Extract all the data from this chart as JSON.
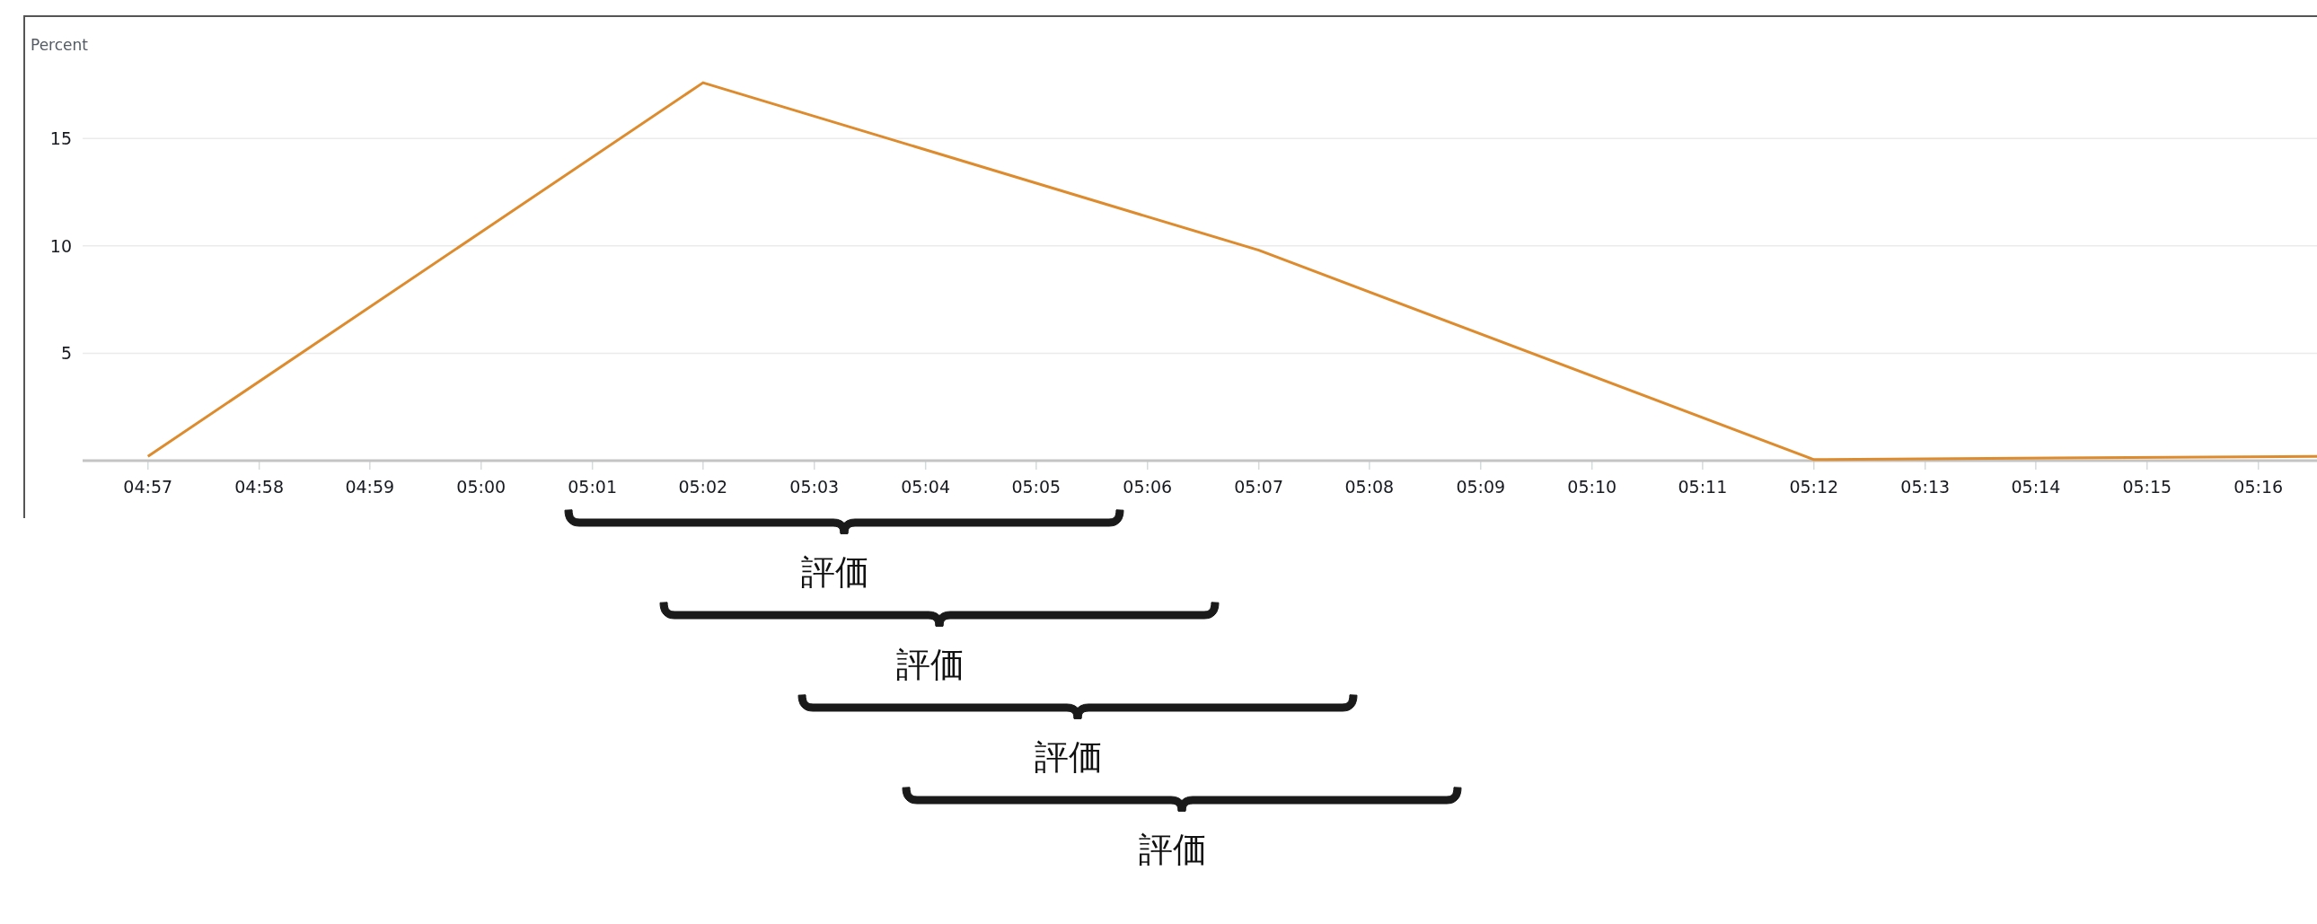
{
  "chart_data": {
    "type": "line",
    "ylabel": "Percent",
    "x": [
      4.95,
      5.0333,
      5.1167,
      5.2,
      5.2755
    ],
    "series": [
      {
        "color": "#dd8b2d",
        "values": [
          0.2,
          17.6,
          9.8,
          0.05,
          0.2
        ]
      }
    ],
    "xlim": [
      4.9402,
      5.2755
    ],
    "xticks": [
      {
        "value": 4.95,
        "label": "04:57"
      },
      {
        "value": 4.9667,
        "label": "04:58"
      },
      {
        "value": 4.9833,
        "label": "04:59"
      },
      {
        "value": 5.0,
        "label": "05:00"
      },
      {
        "value": 5.0167,
        "label": "05:01"
      },
      {
        "value": 5.0333,
        "label": "05:02"
      },
      {
        "value": 5.05,
        "label": "05:03"
      },
      {
        "value": 5.0667,
        "label": "05:04"
      },
      {
        "value": 5.0833,
        "label": "05:05"
      },
      {
        "value": 5.1,
        "label": "05:06"
      },
      {
        "value": 5.1167,
        "label": "05:07"
      },
      {
        "value": 5.1333,
        "label": "05:08"
      },
      {
        "value": 5.15,
        "label": "05:09"
      },
      {
        "value": 5.1667,
        "label": "05:10"
      },
      {
        "value": 5.1833,
        "label": "05:11"
      },
      {
        "value": 5.2,
        "label": "05:12"
      },
      {
        "value": 5.2167,
        "label": "05:13"
      },
      {
        "value": 5.2333,
        "label": "05:14"
      },
      {
        "value": 5.25,
        "label": "05:15"
      },
      {
        "value": 5.2667,
        "label": "05:16"
      }
    ],
    "ylim": [
      0,
      20.7
    ],
    "yticks": [
      5,
      10,
      15
    ],
    "grid": "y",
    "marker": "none",
    "line_style": "solid",
    "annotations": [
      "評価",
      "評価",
      "評価",
      "評価"
    ]
  }
}
